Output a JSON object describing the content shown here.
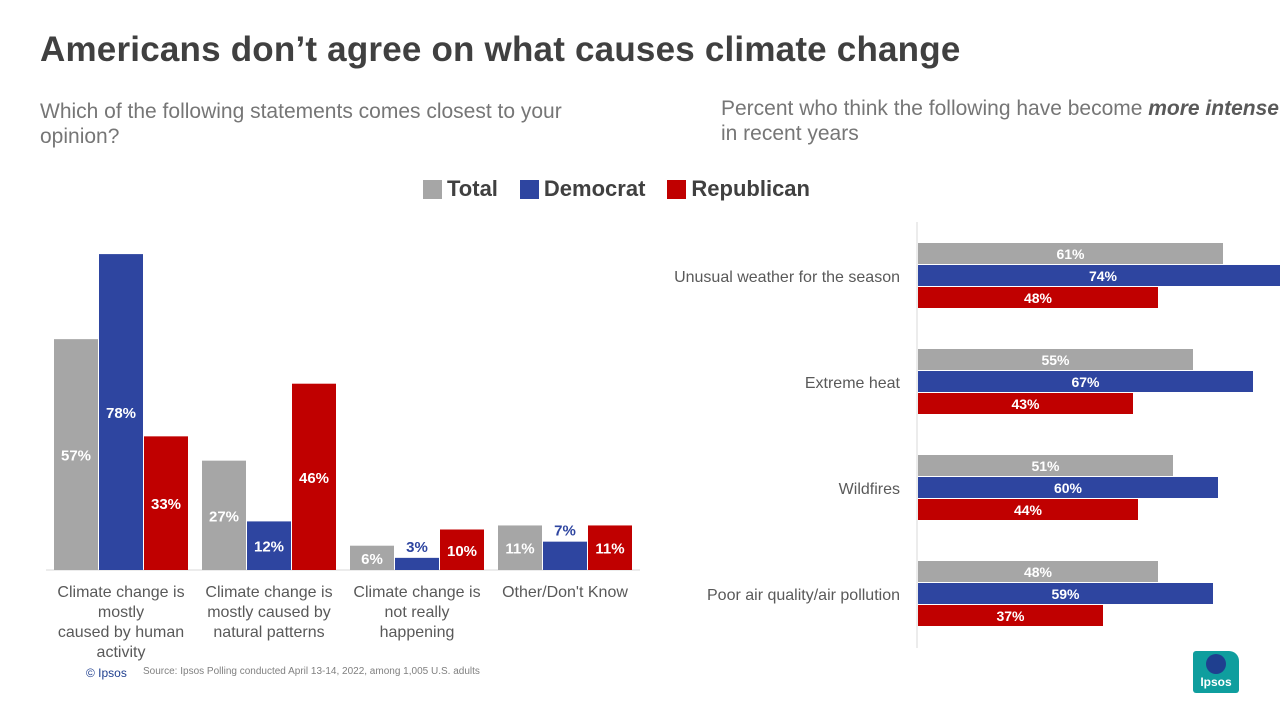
{
  "title": "Americans don’t agree on what causes climate change",
  "subtitle_left": "Which of the following statements comes closest to your opinion?",
  "subtitle_right": {
    "prefix": "Percent who think the following have become ",
    "emphasis": "more intense",
    "suffix": " in recent years"
  },
  "colors": {
    "total": "#a6a6a6",
    "democrat": "#2e45a0",
    "republican": "#c00000"
  },
  "chart_data": [
    {
      "type": "bar",
      "orientation": "vertical",
      "title": "Which of the following statements comes closest to your opinion?",
      "categories": [
        "Climate change is mostly caused by human activity",
        "Climate change is mostly caused by natural patterns",
        "Climate change is not really happening",
        "Other/Don't Know"
      ],
      "category_lines": [
        [
          "Climate change is",
          "mostly",
          "caused by human",
          "activity"
        ],
        [
          "Climate change is",
          "mostly caused by",
          "natural patterns"
        ],
        [
          "Climate change is",
          "not really",
          "happening"
        ],
        [
          "Other/Don't Know"
        ]
      ],
      "series": [
        {
          "name": "Total",
          "values": [
            57,
            27,
            6,
            11
          ],
          "labels": [
            "57%",
            "27%",
            "6%",
            "11%"
          ]
        },
        {
          "name": "Democrat",
          "values": [
            78,
            12,
            3,
            7
          ],
          "labels": [
            "78%",
            "12%",
            "3%",
            "7%"
          ]
        },
        {
          "name": "Republican",
          "values": [
            33,
            46,
            10,
            11
          ],
          "labels": [
            "33%",
            "46%",
            "10%",
            "11%"
          ]
        }
      ],
      "ylim": [
        0,
        100
      ],
      "legend": "top-center"
    },
    {
      "type": "bar",
      "orientation": "horizontal",
      "title": "Percent who think the following have become more intense in recent years",
      "categories": [
        "Unusual weather for the season",
        "Extreme heat",
        "Wildfires",
        "Poor air quality/air pollution"
      ],
      "series": [
        {
          "name": "Total",
          "values": [
            61,
            55,
            51,
            48
          ],
          "labels": [
            "61%",
            "55%",
            "51%",
            "48%"
          ]
        },
        {
          "name": "Democrat",
          "values": [
            74,
            67,
            60,
            59
          ],
          "labels": [
            "74%",
            "67%",
            "60%",
            "59%"
          ]
        },
        {
          "name": "Republican",
          "values": [
            48,
            43,
            44,
            37
          ],
          "labels": [
            "48%",
            "43%",
            "44%",
            "37%"
          ]
        }
      ],
      "xlim": [
        0,
        100
      ]
    }
  ],
  "legend": {
    "total": "Total",
    "democrat": "Democrat",
    "republican": "Republican"
  },
  "footer": {
    "copyright": "© Ipsos",
    "source": "Source: Ipsos Polling  conducted April 13-14, 2022, among 1,005 U.S. adults"
  },
  "logo_text": "Ipsos"
}
